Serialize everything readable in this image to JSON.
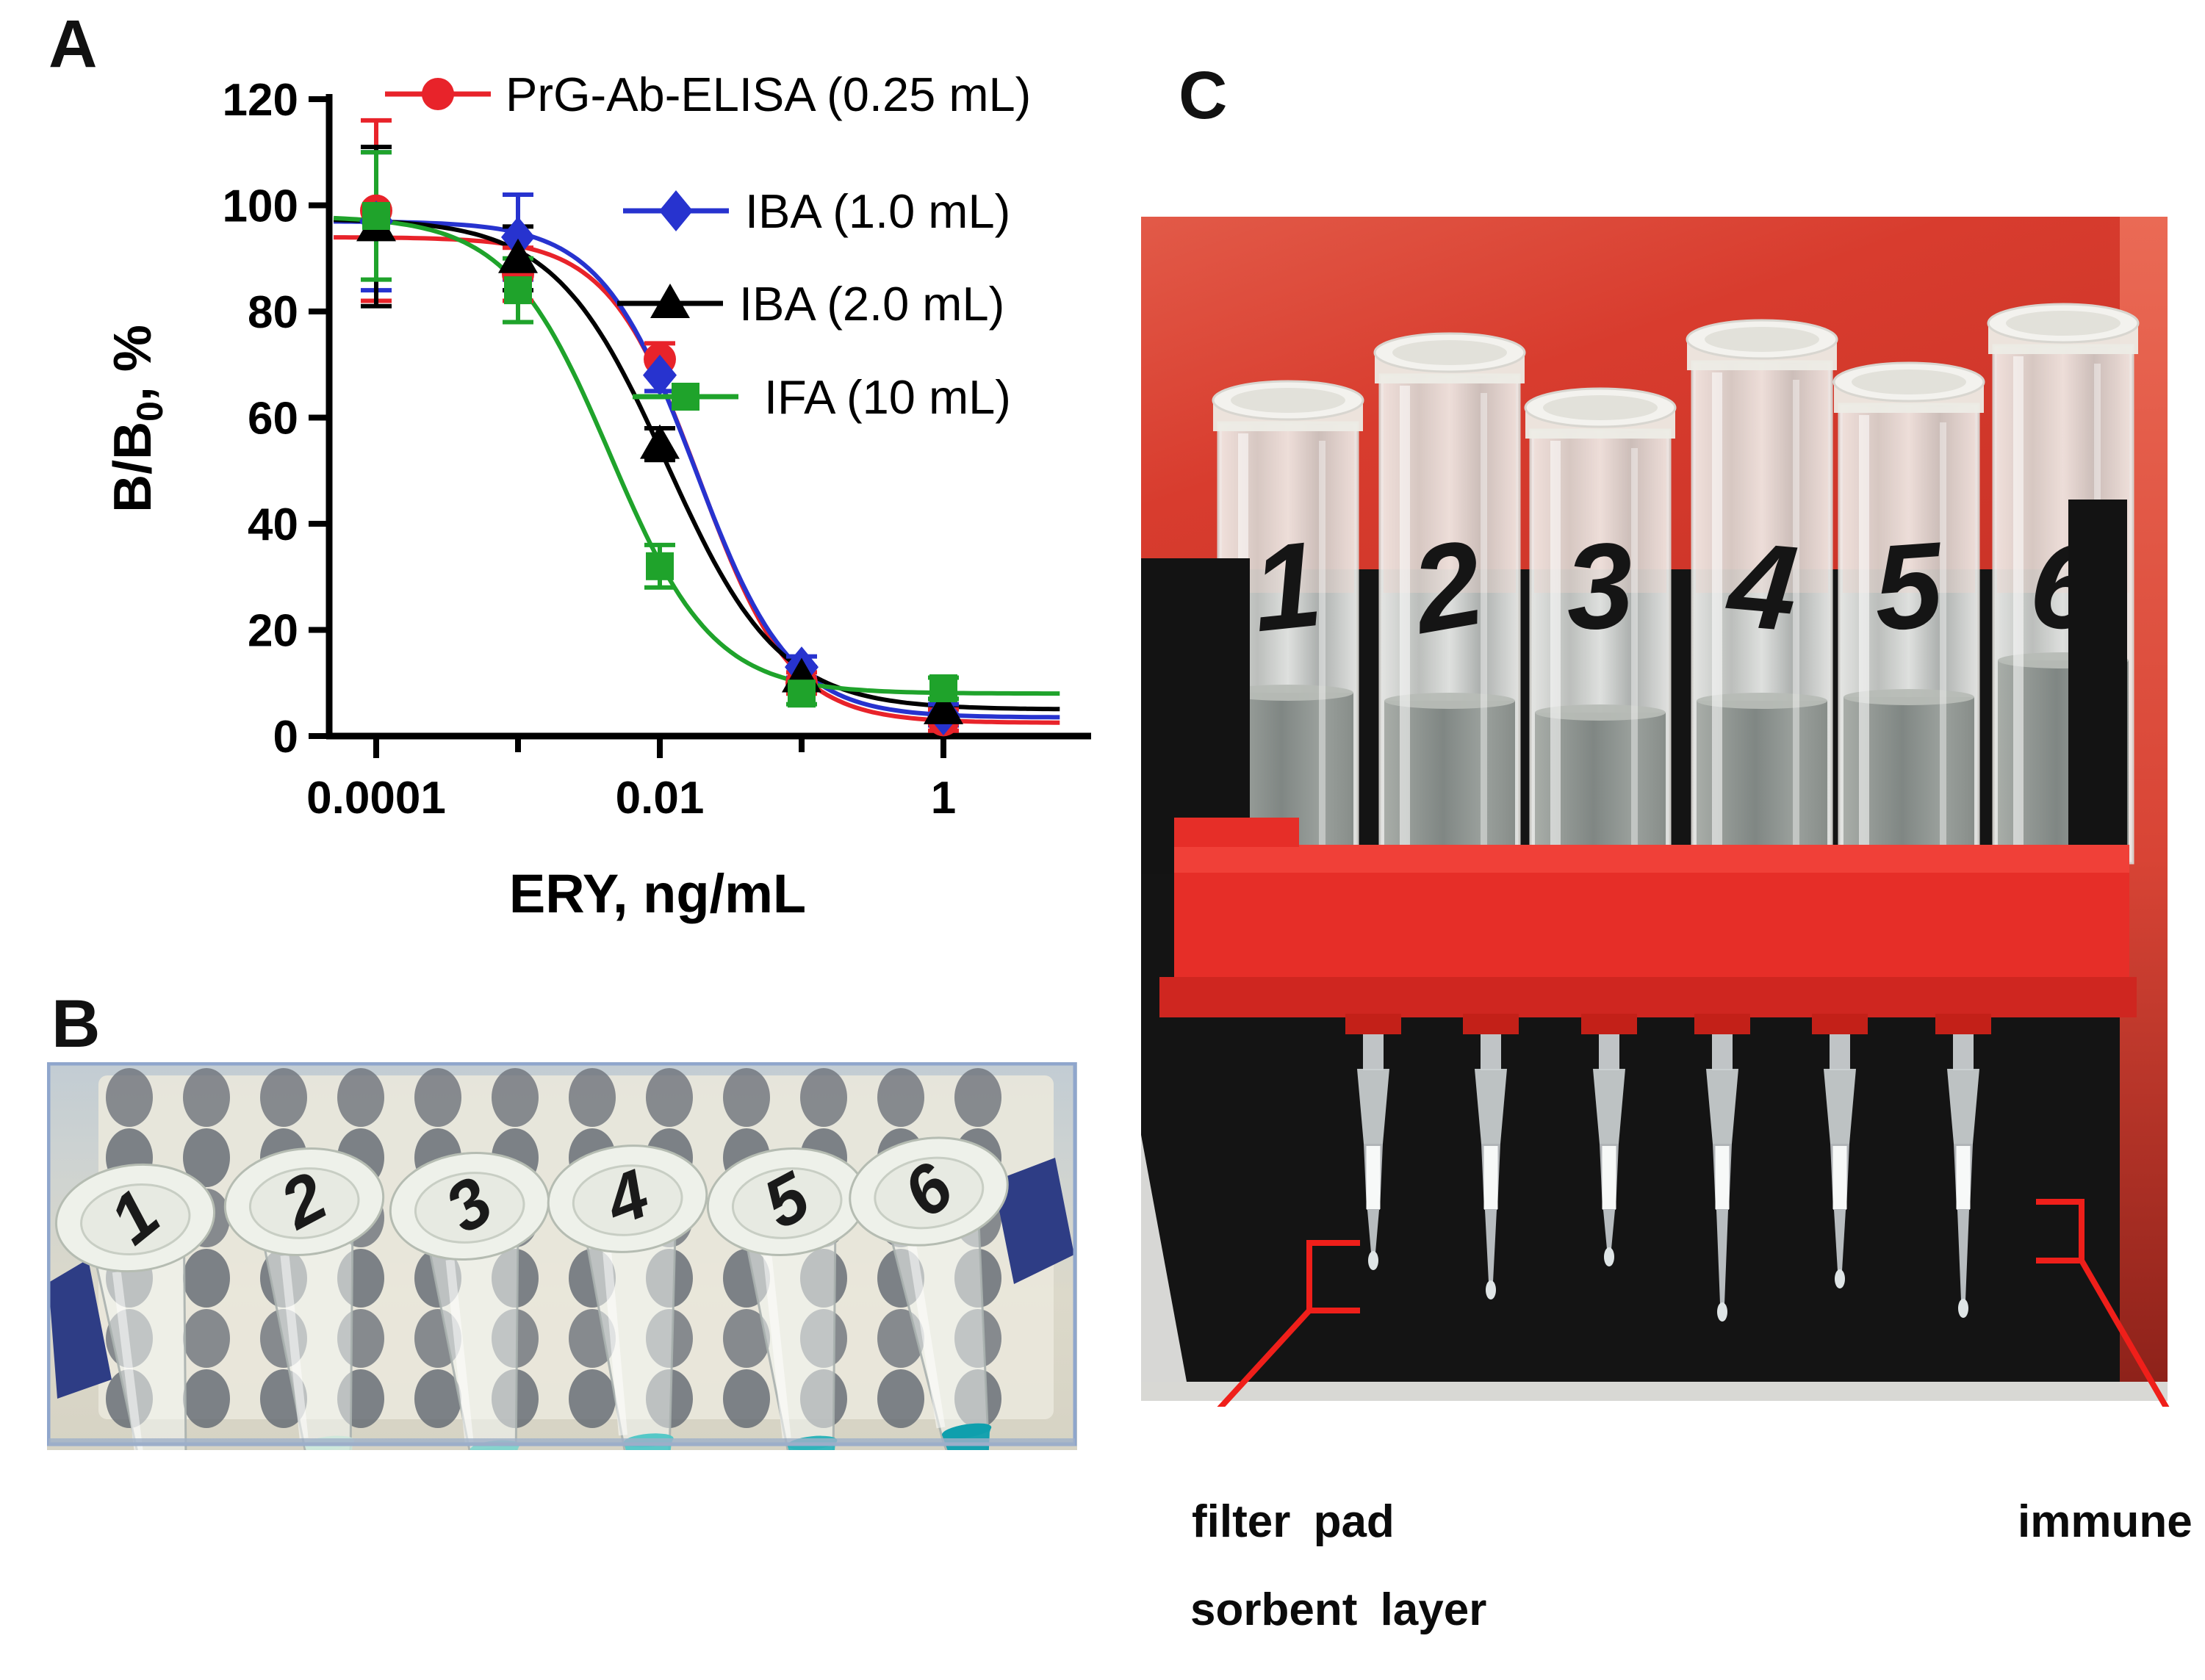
{
  "figure": {
    "panels": [
      {
        "label": "A"
      },
      {
        "label": "B"
      },
      {
        "label": "C"
      }
    ]
  },
  "chart_data": {
    "type": "scatter",
    "title": "",
    "xlabel": "ERY, ng/mL",
    "ylabel": "B/B0, %",
    "ylabel_parts": {
      "main": "B/B",
      "sub": "0",
      "tail": ", %"
    },
    "xscale": "log",
    "xlim": [
      5e-05,
      2
    ],
    "ylim": [
      0,
      120
    ],
    "yticks": [
      0,
      20,
      40,
      60,
      80,
      100,
      120
    ],
    "xticks": [
      {
        "v": 0.0001,
        "label": "0.0001",
        "major": true
      },
      {
        "v": 0.001,
        "label": "",
        "major": false
      },
      {
        "v": 0.01,
        "label": "0.01",
        "major": true
      },
      {
        "v": 0.1,
        "label": "",
        "major": false
      },
      {
        "v": 1,
        "label": "1",
        "major": true
      }
    ],
    "x": [
      0.0001,
      0.001,
      0.01,
      0.1,
      1
    ],
    "series": [
      {
        "name": "PrG-Ab-ELISA (0.25 mL)",
        "color": "#e8232a",
        "marker": "circle",
        "values": [
          99,
          87,
          71,
          10,
          3
        ],
        "errors": [
          17,
          5,
          3,
          2,
          2
        ],
        "fit": {
          "top": 94,
          "bottom": 2.5,
          "logEC50": -1.72,
          "hill": 1.35
        }
      },
      {
        "name": "IBA (1.0 mL)",
        "color": "#2733cf",
        "marker": "diamond",
        "values": [
          97,
          94,
          68,
          13,
          4
        ],
        "errors": [
          13,
          8,
          3,
          2,
          2
        ],
        "fit": {
          "top": 97,
          "bottom": 3.5,
          "logEC50": -1.75,
          "hill": 1.3
        }
      },
      {
        "name": "IBA (2.0 mL)",
        "color": "#000000",
        "marker": "triangle",
        "values": [
          96,
          90,
          55,
          11,
          5
        ],
        "errors": [
          15,
          6,
          3,
          2,
          2
        ],
        "fit": {
          "top": 97.5,
          "bottom": 5,
          "logEC50": -1.95,
          "hill": 1.1
        }
      },
      {
        "name": "IFA (10 mL)",
        "color": "#1fa32b",
        "marker": "square",
        "values": [
          98,
          84,
          32,
          8,
          9
        ],
        "errors": [
          12,
          6,
          4,
          2,
          2
        ],
        "fit": {
          "top": 98,
          "bottom": 8,
          "logEC50": -2.35,
          "hill": 1.2
        }
      }
    ],
    "legend_position": "top-right",
    "grid": false
  },
  "panel_b": {
    "border_color": "#8fa6cc",
    "tubes": [
      {
        "label": "1",
        "liquid_color": "#e7ece8",
        "opacity": 0.45
      },
      {
        "label": "2",
        "liquid_color": "#cde7da",
        "opacity": 0.8
      },
      {
        "label": "3",
        "liquid_color": "#84d4cc",
        "opacity": 0.9
      },
      {
        "label": "4",
        "liquid_color": "#4fc6c6",
        "opacity": 0.92
      },
      {
        "label": "5",
        "liquid_color": "#2eb4ba",
        "opacity": 0.95
      },
      {
        "label": "6",
        "liquid_color": "#0f9fad",
        "opacity": 0.97
      }
    ]
  },
  "panel_c": {
    "accent_color": "#ef1f1a",
    "tubes": [
      {
        "label": "1"
      },
      {
        "label": "2"
      },
      {
        "label": "3"
      },
      {
        "label": "4"
      },
      {
        "label": "5"
      },
      {
        "label": "6"
      }
    ],
    "captions": {
      "filter_pad": "filter pad",
      "sorbent_layer": "sorbent layer",
      "immune": "immune"
    }
  }
}
